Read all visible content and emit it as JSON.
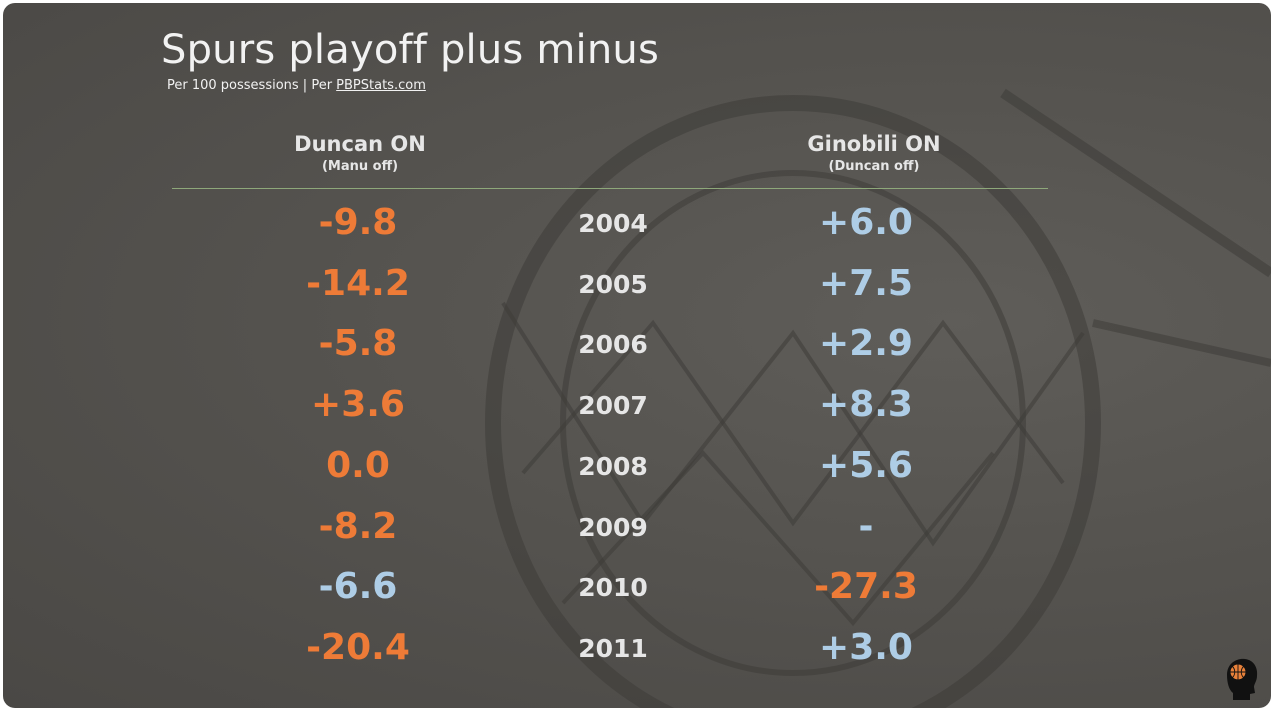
{
  "title": "Spurs playoff plus minus",
  "subtitle_prefix": "Per 100 possessions | Per ",
  "subtitle_source": "PBPStats.com",
  "columns": {
    "left": {
      "label": "Duncan ON",
      "sublabel": "(Manu off)"
    },
    "right": {
      "label": "Ginobili ON",
      "sublabel": "(Duncan off)"
    }
  },
  "colors": {
    "negative": "#ee7b37",
    "positive": "#aecde6",
    "text": "#e6e6e6",
    "divider": "#8ea87a"
  },
  "rows": [
    {
      "year": "2004",
      "duncan": "-9.8",
      "duncan_tone": "neg",
      "ginobili": "+6.0",
      "ginobili_tone": "pos"
    },
    {
      "year": "2005",
      "duncan": "-14.2",
      "duncan_tone": "neg",
      "ginobili": "+7.5",
      "ginobili_tone": "pos"
    },
    {
      "year": "2006",
      "duncan": "-5.8",
      "duncan_tone": "neg",
      "ginobili": "+2.9",
      "ginobili_tone": "pos"
    },
    {
      "year": "2007",
      "duncan": "+3.6",
      "duncan_tone": "neg",
      "ginobili": "+8.3",
      "ginobili_tone": "pos"
    },
    {
      "year": "2008",
      "duncan": "0.0",
      "duncan_tone": "neg",
      "ginobili": "+5.6",
      "ginobili_tone": "pos"
    },
    {
      "year": "2009",
      "duncan": "-8.2",
      "duncan_tone": "neg",
      "ginobili": "-",
      "ginobili_tone": "pos"
    },
    {
      "year": "2010",
      "duncan": "-6.6",
      "duncan_tone": "pos",
      "ginobili": "-27.3",
      "ginobili_tone": "neg"
    },
    {
      "year": "2011",
      "duncan": "-20.4",
      "duncan_tone": "neg",
      "ginobili": "+3.0",
      "ginobili_tone": "pos"
    }
  ],
  "icons": {
    "channel_logo": "head-with-basketball-icon"
  }
}
